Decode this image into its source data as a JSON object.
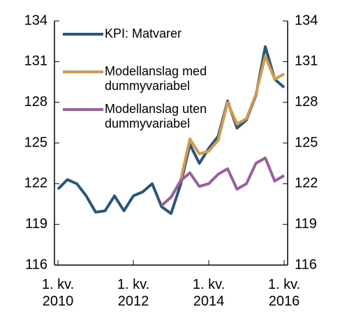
{
  "chart_data": {
    "type": "line",
    "categories": [
      "1. kv. 2010",
      null,
      null,
      null,
      null,
      null,
      null,
      null,
      "1. kv. 2012",
      null,
      null,
      null,
      null,
      null,
      null,
      null,
      "1. kv. 2014",
      null,
      null,
      null,
      null,
      null,
      null,
      null,
      "1. kv. 2016"
    ],
    "series": [
      {
        "name": "KPI: Matvarer",
        "color": "#27587c",
        "values": [
          121.6,
          122.3,
          122.0,
          121.1,
          119.9,
          120.0,
          121.1,
          120.0,
          121.1,
          121.4,
          122.0,
          120.3,
          119.8,
          121.9,
          124.9,
          123.5,
          124.6,
          125.5,
          128.1,
          126.1,
          126.7,
          128.5,
          132.1,
          129.7,
          129.1
        ]
      },
      {
        "name": "Modellanslag med dummyvariabel",
        "color": "#d69a4c",
        "values": [
          null,
          null,
          null,
          null,
          null,
          null,
          null,
          null,
          null,
          null,
          null,
          120.4,
          121.0,
          122.2,
          125.3,
          124.2,
          124.4,
          125.2,
          128.0,
          126.4,
          126.8,
          128.6,
          131.4,
          129.7,
          130.1
        ]
      },
      {
        "name": "Modellanslag uten dummyvariabel",
        "color": "#9b5fa0",
        "values": [
          null,
          null,
          null,
          null,
          null,
          null,
          null,
          null,
          null,
          null,
          null,
          120.4,
          121.0,
          122.2,
          122.8,
          121.8,
          122.0,
          122.7,
          123.1,
          121.6,
          122.0,
          123.5,
          123.9,
          122.2,
          122.6
        ]
      }
    ],
    "ylim": [
      116,
      134
    ],
    "yticks": [
      116,
      119,
      122,
      125,
      128,
      131,
      134
    ],
    "y2lim": [
      116,
      134
    ],
    "y2ticks": [
      116,
      119,
      122,
      125,
      128,
      131,
      134
    ],
    "grid": false,
    "legend": "upper left"
  }
}
